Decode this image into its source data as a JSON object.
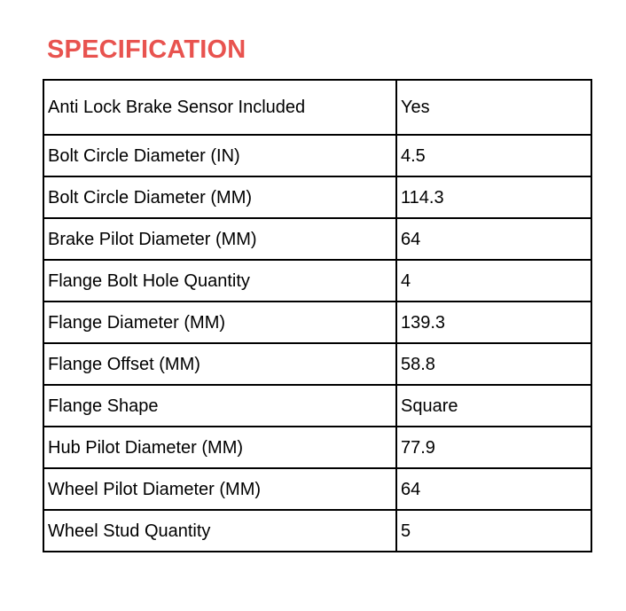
{
  "title": "SPECIFICATION",
  "colors": {
    "title": "#e8534f",
    "border": "#000000"
  },
  "rows": [
    {
      "label": "Anti Lock Brake Sensor Included",
      "value": "Yes"
    },
    {
      "label": "Bolt Circle Diameter (IN)",
      "value": "4.5"
    },
    {
      "label": "Bolt Circle Diameter (MM)",
      "value": "114.3"
    },
    {
      "label": "Brake Pilot Diameter (MM)",
      "value": "64"
    },
    {
      "label": "Flange Bolt Hole Quantity",
      "value": "4"
    },
    {
      "label": "Flange Diameter (MM)",
      "value": "139.3"
    },
    {
      "label": "Flange Offset (MM)",
      "value": "58.8"
    },
    {
      "label": "Flange Shape",
      "value": "Square"
    },
    {
      "label": "Hub Pilot Diameter (MM)",
      "value": "77.9"
    },
    {
      "label": "Wheel Pilot Diameter (MM)",
      "value": "64"
    },
    {
      "label": "Wheel Stud Quantity",
      "value": "5"
    }
  ]
}
